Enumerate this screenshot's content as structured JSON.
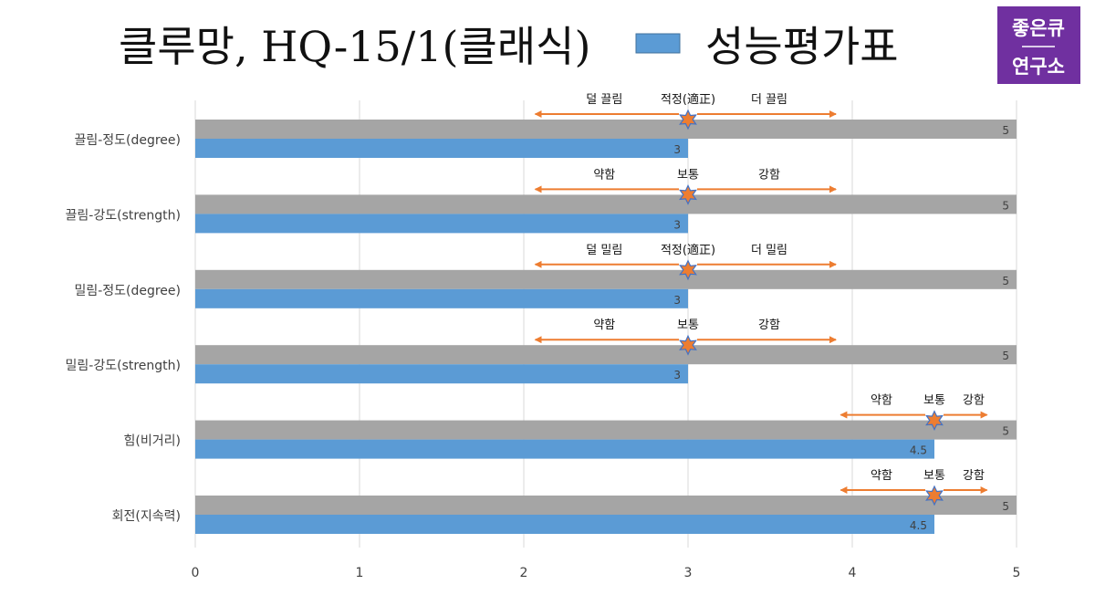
{
  "title": "클루망, HQ-15/1(클래식)",
  "legend_label": "성능평가표",
  "logo": {
    "line1": "좋은큐",
    "line2": "연구소"
  },
  "colors": {
    "max_bar": "#a5a5a5",
    "value_bar": "#5b9bd5",
    "marker": "#ed7d31",
    "marker_outline": "#4472c4",
    "arrow": "#ed7d31",
    "grid": "#d9d9d9",
    "logo_bg": "#7030a0"
  },
  "chart_data": {
    "type": "bar",
    "orientation": "horizontal",
    "categories": [
      "끌림-정도(degree)",
      "끌림-강도(strength)",
      "밀림-정도(degree)",
      "밀림-강도(strength)",
      "힘(비거리)",
      "회전(지속력)"
    ],
    "series": [
      {
        "name": "",
        "values": [
          5,
          5,
          5,
          5,
          5,
          5
        ]
      },
      {
        "name": "성능평가표",
        "values": [
          3,
          3,
          3,
          3,
          4.5,
          4.5
        ]
      }
    ],
    "value_labels": {
      "max": [
        "5",
        "5",
        "5",
        "5",
        "5",
        "5"
      ],
      "score": [
        "3",
        "3",
        "3",
        "3",
        "4.5",
        "4.5"
      ]
    },
    "x_ticks": [
      "0",
      "1",
      "2",
      "3",
      "4",
      "5"
    ],
    "xlim": [
      0,
      5
    ],
    "grid": true,
    "annotations": [
      {
        "left": "덜 끌림",
        "center": "적정(適正)",
        "right": "더 끌림",
        "marker_value": 3,
        "arrow_from": 2.07,
        "arrow_to": 3.9
      },
      {
        "left": "약함",
        "center": "보통",
        "right": "강함",
        "marker_value": 3,
        "arrow_from": 2.07,
        "arrow_to": 3.9
      },
      {
        "left": "덜 밀림",
        "center": "적정(適正)",
        "right": "더 밀림",
        "marker_value": 3,
        "arrow_from": 2.07,
        "arrow_to": 3.9
      },
      {
        "left": "약함",
        "center": "보통",
        "right": "강함",
        "marker_value": 3,
        "arrow_from": 2.07,
        "arrow_to": 3.9
      },
      {
        "left": "약함",
        "center": "보통",
        "right": "강함",
        "marker_value": 4.5,
        "arrow_from": 3.93,
        "arrow_to": 4.82
      },
      {
        "left": "약함",
        "center": "보통",
        "right": "강함",
        "marker_value": 4.5,
        "arrow_from": 3.93,
        "arrow_to": 4.82
      }
    ]
  }
}
